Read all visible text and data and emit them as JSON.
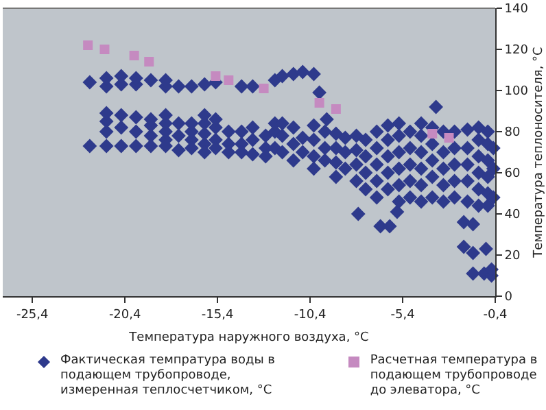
{
  "chart_data": {
    "type": "scatter",
    "xlabel": "Температура наружного воздуха, °С",
    "ylabel": "Температура теплоносителя, °С",
    "xlim": [
      -27,
      -0.4
    ],
    "ylim": [
      0,
      140
    ],
    "xticks": [
      {
        "value": -25.4,
        "label": "-25,4"
      },
      {
        "value": -20.4,
        "label": "-20,4"
      },
      {
        "value": -15.4,
        "label": "-15,4"
      },
      {
        "value": -10.4,
        "label": "-10,4"
      },
      {
        "value": -5.4,
        "label": "-5,4"
      },
      {
        "value": -0.4,
        "label": "-0,4"
      }
    ],
    "yticks": [
      0,
      20,
      40,
      60,
      80,
      100,
      120,
      140
    ],
    "grid": false,
    "legend": "bottom",
    "series": [
      {
        "name": "Фактическая темпратура воды в подающем трубопроводе, измеренная теплосчетчиком, °С",
        "color": "#2e3a8c",
        "marker": "diamond",
        "x": [
          -22.3,
          -21.4,
          -21.4,
          -20.6,
          -20.6,
          -19.8,
          -19.8,
          -19.0,
          -18.2,
          -18.2,
          -17.5,
          -16.8,
          -16.1,
          -15.5,
          -14.1,
          -13.5,
          -12.3,
          -21.4,
          -21.4,
          -21.4,
          -20.6,
          -20.6,
          -19.8,
          -19.8,
          -19.0,
          -19.0,
          -19.0,
          -18.2,
          -18.2,
          -18.2,
          -18.2,
          -17.5,
          -17.5,
          -16.8,
          -16.8,
          -16.8,
          -16.1,
          -16.1,
          -16.1,
          -16.1,
          -15.5,
          -15.5,
          -15.5,
          -14.8,
          -14.8,
          -14.1,
          -14.1,
          -13.5,
          -13.5,
          -12.8,
          -12.8,
          -12.3,
          -12.3,
          -12.3,
          -22.3,
          -21.4,
          -20.6,
          -19.8,
          -19.0,
          -18.2,
          -17.5,
          -16.8,
          -16.1,
          -15.5,
          -14.8,
          -14.1,
          -13.5,
          -12.8,
          -11.9,
          -11.3,
          -10.8,
          -10.2,
          -9.9,
          -9.5,
          -11.9,
          -11.9,
          -11.9,
          -11.3,
          -11.3,
          -11.3,
          -10.8,
          -10.8,
          -10.2,
          -10.2,
          -10.2,
          -10.2,
          -9.6,
          -9.6,
          -9.6,
          -9.0,
          -9.0,
          -9.0,
          -9.0,
          -8.5,
          -8.5,
          -8.5,
          -7.9,
          -7.9,
          -7.9,
          -7.9,
          -7.8,
          -7.4,
          -7.4,
          -7.4,
          -7.4,
          -6.8,
          -6.8,
          -6.8,
          -6.8,
          -6.8,
          -6.6,
          -6.1,
          -6.2,
          -6.2,
          -6.2,
          -6.2,
          -6.2,
          -5.7,
          -5.6,
          -5.6,
          -5.6,
          -5.6,
          -5.6,
          -5.6,
          -5.0,
          -5.0,
          -5.0,
          -5.0,
          -5.0,
          -4.4,
          -4.4,
          -4.4,
          -4.4,
          -4.4,
          -4.4,
          -3.8,
          -3.8,
          -3.8,
          -3.8,
          -3.8,
          -3.6,
          -3.2,
          -3.2,
          -3.2,
          -3.2,
          -3.2,
          -2.6,
          -2.6,
          -2.6,
          -2.6,
          -2.6,
          -2.1,
          -2.1,
          -1.9,
          -1.9,
          -1.9,
          -1.9,
          -1.9,
          -1.6,
          -1.6,
          -1.6,
          -1.3,
          -1.3,
          -1.3,
          -1.3,
          -1.3,
          -1.3,
          -1.0,
          -0.9,
          -0.8,
          -0.8,
          -0.8,
          -0.8,
          -0.8,
          -0.8,
          -0.6,
          -0.6,
          -0.5,
          -0.5,
          -0.5
        ],
        "values": [
          104,
          102,
          106,
          103,
          107,
          103,
          106,
          105,
          102,
          105,
          102,
          102,
          103,
          104,
          102,
          102,
          105,
          80,
          85,
          89,
          82,
          88,
          80,
          87,
          78,
          83,
          86,
          76,
          80,
          84,
          88,
          78,
          84,
          76,
          80,
          84,
          74,
          79,
          84,
          88,
          76,
          82,
          86,
          74,
          80,
          74,
          80,
          76,
          82,
          72,
          78,
          72,
          80,
          84,
          73,
          73,
          73,
          73,
          73,
          73,
          71,
          72,
          70,
          72,
          70,
          70,
          69,
          68,
          107,
          108,
          109,
          108,
          99,
          86,
          70,
          78,
          84,
          66,
          74,
          82,
          70,
          77,
          62,
          68,
          76,
          83,
          66,
          72,
          80,
          58,
          65,
          72,
          79,
          62,
          70,
          77,
          56,
          64,
          71,
          78,
          40,
          52,
          60,
          68,
          76,
          48,
          56,
          64,
          72,
          80,
          34,
          34,
          52,
          60,
          68,
          76,
          83,
          41,
          46,
          54,
          62,
          70,
          78,
          84,
          48,
          56,
          64,
          72,
          80,
          46,
          54,
          62,
          70,
          78,
          84,
          48,
          58,
          66,
          74,
          82,
          92,
          46,
          54,
          62,
          70,
          80,
          48,
          56,
          64,
          72,
          80,
          36,
          24,
          46,
          56,
          64,
          72,
          81,
          35,
          21,
          11,
          44,
          52,
          60,
          68,
          76,
          82,
          11,
          23,
          44,
          50,
          58,
          66,
          74,
          80,
          10,
          13,
          48,
          62,
          72
        ]
      },
      {
        "name": "Расчетная температура в подающем трубопроводе до элеватора, °С",
        "color": "#c58ac0",
        "marker": "square",
        "x": [
          -22.4,
          -21.5,
          -19.9,
          -19.1,
          -15.5,
          -14.8,
          -12.9,
          -9.9,
          -9.0,
          -3.8,
          -2.9
        ],
        "values": [
          122,
          120,
          117,
          114,
          107,
          105,
          101,
          94,
          91,
          79,
          77
        ]
      }
    ]
  }
}
